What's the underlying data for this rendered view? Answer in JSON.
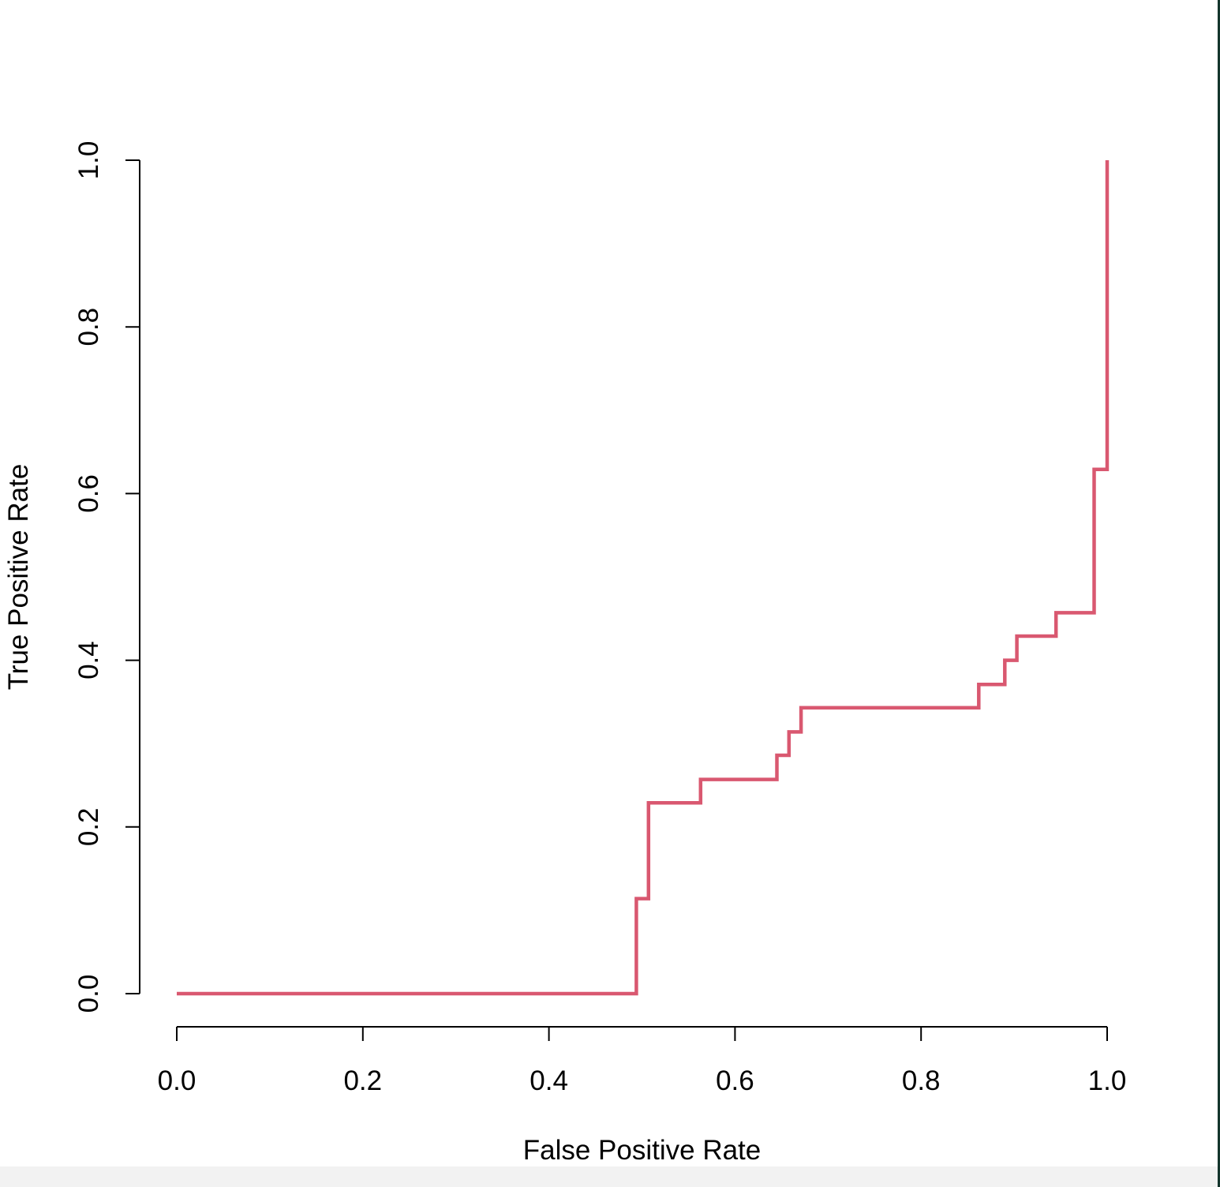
{
  "chart_data": {
    "type": "line",
    "title": "",
    "xlabel": "False Positive Rate",
    "ylabel": "True Positive Rate",
    "xlim": [
      0.0,
      1.0
    ],
    "ylim": [
      0.0,
      1.0
    ],
    "xticks": [
      "0.0",
      "0.2",
      "0.4",
      "0.6",
      "0.8",
      "1.0"
    ],
    "yticks": [
      "0.0",
      "0.2",
      "0.4",
      "0.6",
      "0.8",
      "1.0"
    ],
    "grid": false,
    "legend": "none",
    "line_color": "#d95870",
    "series": [
      {
        "step": true,
        "x": [
          0.0,
          0.494,
          0.494,
          0.507,
          0.507,
          0.563,
          0.563,
          0.645,
          0.645,
          0.658,
          0.658,
          0.671,
          0.671,
          0.862,
          0.862,
          0.89,
          0.89,
          0.903,
          0.903,
          0.945,
          0.945,
          0.986,
          0.986,
          1.0,
          1.0
        ],
        "y": [
          0.0,
          0.0,
          0.114,
          0.114,
          0.229,
          0.229,
          0.257,
          0.257,
          0.286,
          0.286,
          0.314,
          0.314,
          0.343,
          0.343,
          0.371,
          0.371,
          0.4,
          0.4,
          0.429,
          0.429,
          0.457,
          0.457,
          0.629,
          0.629,
          1.0
        ]
      }
    ]
  }
}
